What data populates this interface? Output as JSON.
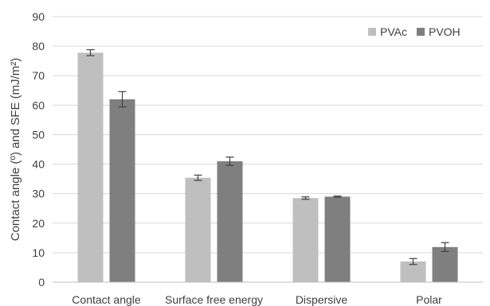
{
  "chart_data": {
    "type": "bar",
    "categories": [
      "Contact angle",
      "Surface free energy",
      "Dispersive",
      "Polar"
    ],
    "series": [
      {
        "name": "PVAc",
        "color": "#bfbfbf",
        "values": [
          77.8,
          35.4,
          28.5,
          7.0
        ],
        "errors": [
          1.0,
          0.9,
          0.4,
          1.0
        ]
      },
      {
        "name": "PVOH",
        "color": "#7f7f7f",
        "values": [
          62.0,
          41.0,
          29.0,
          11.9
        ],
        "errors": [
          2.6,
          1.4,
          0.2,
          1.5
        ]
      }
    ],
    "title": "",
    "xlabel": "",
    "ylabel": "Contact angle (º) and SFE (mJ/m²)",
    "ylim": [
      0,
      90
    ],
    "yticks": [
      0,
      10,
      20,
      30,
      40,
      50,
      60,
      70,
      80,
      90
    ],
    "grid": true,
    "legend": "top-right"
  }
}
